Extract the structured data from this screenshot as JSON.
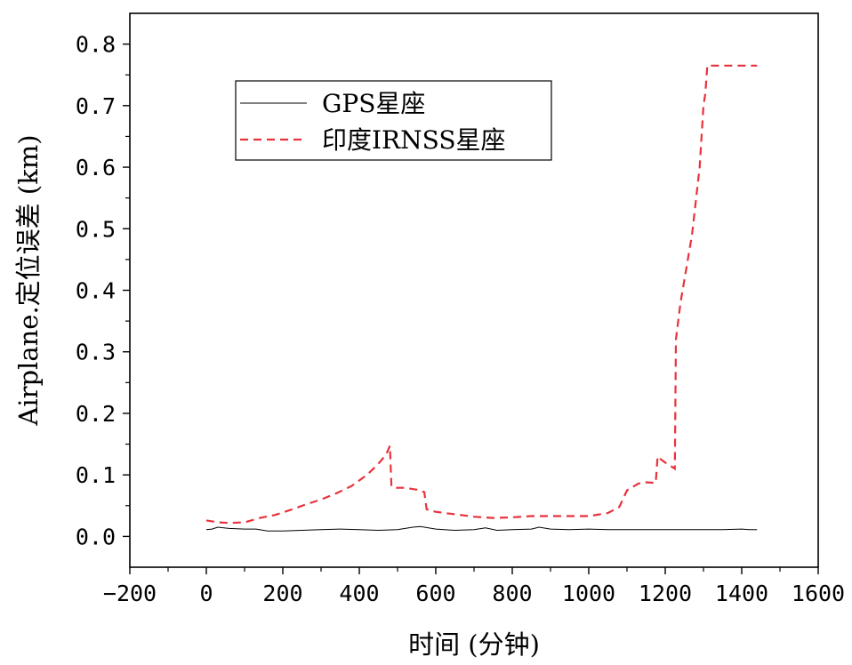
{
  "chart_data": {
    "type": "line",
    "title": "",
    "xlabel": "时间 (分钟)",
    "ylabel": "Airplane.定位误差 (km)",
    "xlim": [
      -200,
      1600
    ],
    "ylim": [
      -0.05,
      0.85
    ],
    "xticks": [
      -200,
      0,
      200,
      400,
      600,
      800,
      1000,
      1200,
      1400,
      1600
    ],
    "xtick_labels": [
      "−200",
      "0",
      "200",
      "400",
      "600",
      "800",
      "1000",
      "1200",
      "1400",
      "1600"
    ],
    "yticks": [
      0.0,
      0.1,
      0.2,
      0.3,
      0.4,
      0.5,
      0.6,
      0.7,
      0.8
    ],
    "ytick_labels": [
      "0.0",
      "0.1",
      "0.2",
      "0.3",
      "0.4",
      "0.5",
      "0.6",
      "0.7",
      "0.8"
    ],
    "grid": false,
    "legend_position": "upper-left",
    "series": [
      {
        "name": "GPS星座",
        "color": "#000000",
        "style": "solid",
        "x": [
          0,
          15,
          30,
          60,
          100,
          130,
          160,
          200,
          250,
          300,
          350,
          400,
          450,
          500,
          540,
          560,
          600,
          650,
          700,
          730,
          760,
          800,
          850,
          870,
          900,
          950,
          1000,
          1050,
          1100,
          1150,
          1200,
          1250,
          1300,
          1350,
          1400,
          1420,
          1440
        ],
        "y": [
          0.011,
          0.012,
          0.015,
          0.013,
          0.012,
          0.012,
          0.009,
          0.009,
          0.01,
          0.011,
          0.012,
          0.011,
          0.01,
          0.011,
          0.015,
          0.016,
          0.012,
          0.01,
          0.011,
          0.014,
          0.01,
          0.011,
          0.012,
          0.015,
          0.012,
          0.011,
          0.012,
          0.011,
          0.011,
          0.011,
          0.011,
          0.011,
          0.011,
          0.011,
          0.012,
          0.011,
          0.011
        ]
      },
      {
        "name": "印度IRNSS星座",
        "color": "#e8323c",
        "style": "dashed",
        "x": [
          0,
          30,
          60,
          100,
          140,
          180,
          220,
          260,
          300,
          340,
          380,
          420,
          450,
          470,
          480,
          484,
          490,
          520,
          550,
          570,
          576,
          600,
          650,
          700,
          750,
          800,
          850,
          900,
          950,
          1000,
          1050,
          1080,
          1100,
          1130,
          1150,
          1175,
          1180,
          1185,
          1200,
          1225,
          1228,
          1240,
          1270,
          1290,
          1300,
          1305,
          1310,
          1400,
          1440
        ],
        "y": [
          0.026,
          0.023,
          0.022,
          0.023,
          0.03,
          0.035,
          0.043,
          0.052,
          0.06,
          0.07,
          0.082,
          0.1,
          0.118,
          0.133,
          0.147,
          0.082,
          0.079,
          0.079,
          0.076,
          0.072,
          0.044,
          0.04,
          0.036,
          0.032,
          0.03,
          0.031,
          0.033,
          0.033,
          0.033,
          0.033,
          0.038,
          0.048,
          0.075,
          0.086,
          0.088,
          0.087,
          0.13,
          0.127,
          0.12,
          0.11,
          0.32,
          0.38,
          0.49,
          0.6,
          0.7,
          0.72,
          0.765,
          0.765,
          0.765
        ]
      }
    ]
  }
}
